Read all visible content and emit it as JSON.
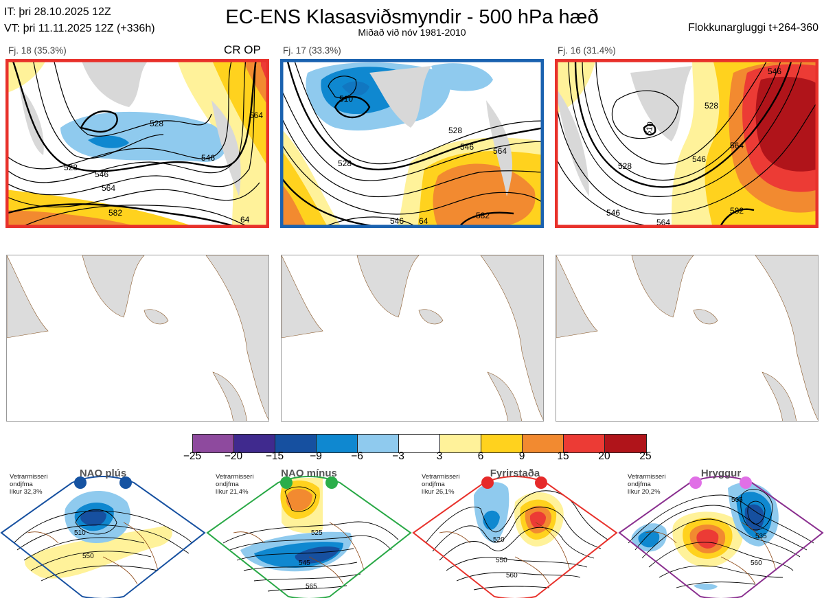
{
  "header": {
    "it": "IT: þri 28.10.2025 12Z",
    "vt": "VT: þri 11.11.2025 12Z  (+336h)",
    "title": "EC-ENS Klasasviðsmyndir - 500 hPa hæð",
    "subtitle": "Miðað við nóv 1981-2010",
    "window": "Flokkunargluggi t+264-360"
  },
  "clusters": [
    {
      "label": "Fj. 18 (35.3%)",
      "op": "CR OP",
      "frame_color": "#e8312b",
      "contours": [
        "528",
        "546",
        "564",
        "582",
        "528",
        "546",
        "564",
        "64"
      ]
    },
    {
      "label": "Fj. 17 (33.3%)",
      "op": "",
      "frame_color": "#1a62b0",
      "contours": [
        "510",
        "528",
        "546",
        "564",
        "528",
        "582",
        "546",
        "64"
      ]
    },
    {
      "label": "Fj. 16 (31.4%)",
      "op": "",
      "frame_color": "#e8312b",
      "contours": [
        "546",
        "528",
        "510",
        "528",
        "546",
        "564",
        "582",
        "546",
        "564"
      ]
    }
  ],
  "colorbar": {
    "ticks": [
      "−25",
      "−20",
      "−15",
      "−9",
      "−6",
      "−3",
      "3",
      "6",
      "9",
      "15",
      "20",
      "25"
    ],
    "colors": [
      "#8e4a9e",
      "#402a8e",
      "#1650a0",
      "#0f88d0",
      "#8fcaee",
      "#ffffff",
      "#fff29a",
      "#ffd21e",
      "#f28a30",
      "#ec3b35",
      "#b0141a"
    ]
  },
  "regimes": [
    {
      "name": "NAO plús",
      "info_line1": "Vetrarmisseri",
      "info_line2": "ondjfma",
      "info_line3": "líkur 32,3%",
      "color": "#1650a0",
      "dot_color": "#1653a2",
      "contours": [
        "510",
        "550"
      ]
    },
    {
      "name": "NAO mínus",
      "info_line1": "Vetrarmisseri",
      "info_line2": "ondjfma",
      "info_line3": "líkur 21,4%",
      "color": "#28a845",
      "dot_color": "#2bae4a",
      "contours": [
        "525",
        "545",
        "565"
      ]
    },
    {
      "name": "Fyrirstaða",
      "info_line1": "Vetrarmisseri",
      "info_line2": "ondjfma",
      "info_line3": "líkur 26,1%",
      "color": "#e8312b",
      "dot_color": "#e62a2a",
      "contours": [
        "520",
        "550",
        "560"
      ]
    },
    {
      "name": "Hryggur",
      "info_line1": "Vetrarmisseri",
      "info_line2": "ondjfma",
      "info_line3": "líkur 20,2%",
      "color": "#8a2f8f",
      "dot_color": "#e070e6",
      "contours": [
        "505",
        "535",
        "560"
      ]
    }
  ],
  "icons": {
    "land": "land-shape",
    "dots": "regime-dot-icon"
  }
}
